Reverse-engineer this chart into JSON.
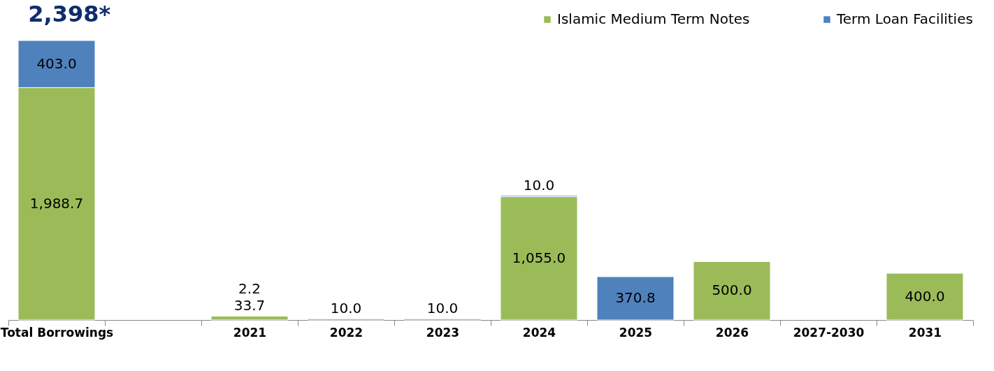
{
  "chart_data": {
    "type": "bar",
    "title": "2,398*",
    "stacked": true,
    "legend": "top right",
    "tick_labels": "x",
    "grid": false,
    "categories": [
      "Total Borrowings",
      null,
      "2021",
      "2022",
      "2023",
      "2024",
      "2025",
      "2026",
      "2027-2030",
      "2031"
    ],
    "series": [
      {
        "name": "Islamic Medium Term Notes",
        "color": "#9bbb59",
        "values": [
          1988.7,
          null,
          33.7,
          null,
          null,
          1055.0,
          null,
          500.0,
          null,
          400.0
        ],
        "value_labels": [
          "1,988.7",
          null,
          "33.7",
          null,
          null,
          "1,055.0",
          null,
          "500.0",
          null,
          "400.0"
        ]
      },
      {
        "name": "Term Loan Facilities",
        "color": "#4f81bd",
        "values": [
          403.0,
          null,
          2.2,
          10.0,
          10.0,
          10.0,
          370.8,
          null,
          null,
          null
        ],
        "value_labels": [
          "403.0",
          null,
          "2.2",
          "10.0",
          "10.0",
          "10.0",
          "370.8",
          null,
          null,
          null
        ]
      }
    ]
  }
}
